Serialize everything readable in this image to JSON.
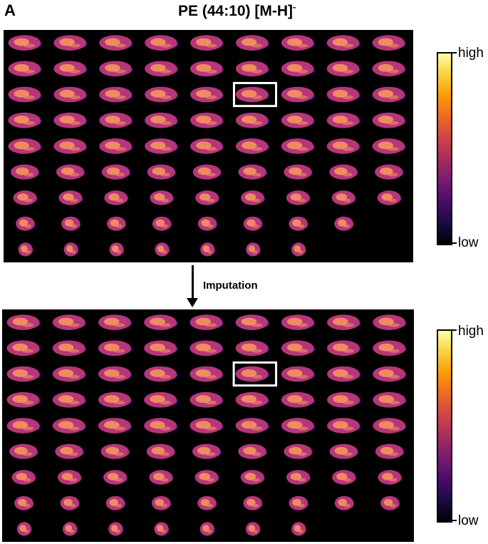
{
  "panel_letter": "A",
  "title": {
    "main": "PE (44:10) [M-H]",
    "superscript": "-"
  },
  "step_label": "Imputation",
  "colorbar": {
    "high_label": "high",
    "low_label": "low",
    "colormap": "magma"
  },
  "grids": [
    {
      "name": "original",
      "rows": 9,
      "row_counts": [
        9,
        9,
        9,
        9,
        9,
        9,
        9,
        8,
        7
      ],
      "highlighted_cell": {
        "row": 3,
        "col": 6
      }
    },
    {
      "name": "imputed",
      "rows": 9,
      "row_counts": [
        9,
        9,
        9,
        9,
        9,
        9,
        9,
        9,
        7
      ],
      "highlighted_cell": {
        "row": 3,
        "col": 6
      }
    }
  ],
  "colors": {
    "background": "#000000",
    "tissue_base": "#b5367a",
    "tissue_bright": "#f99a5c",
    "tissue_edge": "#4b1a8c",
    "highlight": "#ffffff"
  }
}
